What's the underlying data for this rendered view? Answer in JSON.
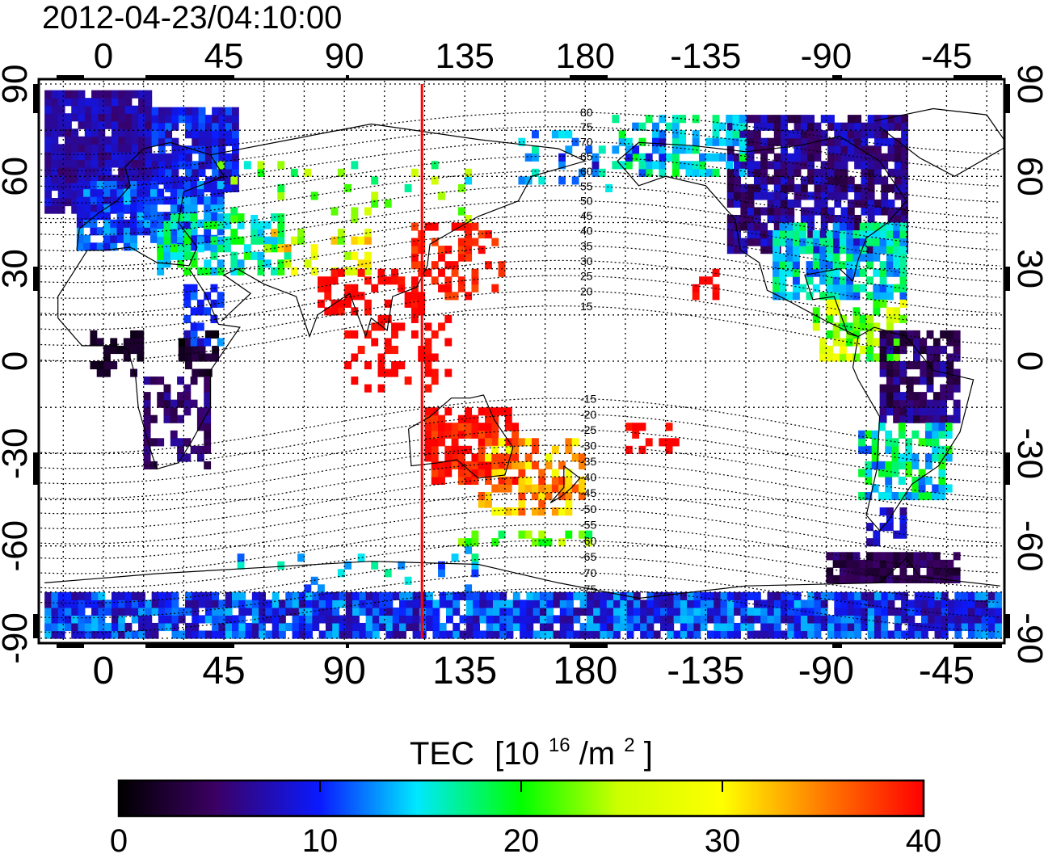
{
  "timestamp": "2012-04-23/04:10:00",
  "top_lon_ticks": [
    "0",
    "45",
    "90",
    "135",
    "180",
    "-135",
    "-90",
    "-45"
  ],
  "bottom_lon_ticks": [
    "0",
    "45",
    "90",
    "135",
    "180",
    "-135",
    "-90",
    "-45"
  ],
  "lat_ticks": [
    "90",
    "60",
    "30",
    "0",
    "-30",
    "-60",
    "-90"
  ],
  "contour_labels": [
    "80",
    "75",
    "70",
    "65",
    "60",
    "55",
    "50",
    "45",
    "40",
    "35",
    "30",
    "25",
    "20",
    "15",
    "-15",
    "-20",
    "-25",
    "-30",
    "-35",
    "-40",
    "-45",
    "-50",
    "-55",
    "-60",
    "-65",
    "-70",
    "-75"
  ],
  "colorbar": {
    "title": "TEC",
    "units_prefix": "[10",
    "units_exp1": "16",
    "units_mid": "/m",
    "units_exp2": "2",
    "units_suffix": "]",
    "ticks": [
      "0",
      "10",
      "20",
      "30",
      "40"
    ],
    "min": 0,
    "max": 40
  },
  "colors": {
    "marker_line": "#ff0000",
    "scale": [
      "#000000",
      "#3b0063",
      "#0a1aff",
      "#00e8ff",
      "#00ff00",
      "#ffff00",
      "#ff8000",
      "#ff0000"
    ]
  },
  "marker_longitude": 119
}
